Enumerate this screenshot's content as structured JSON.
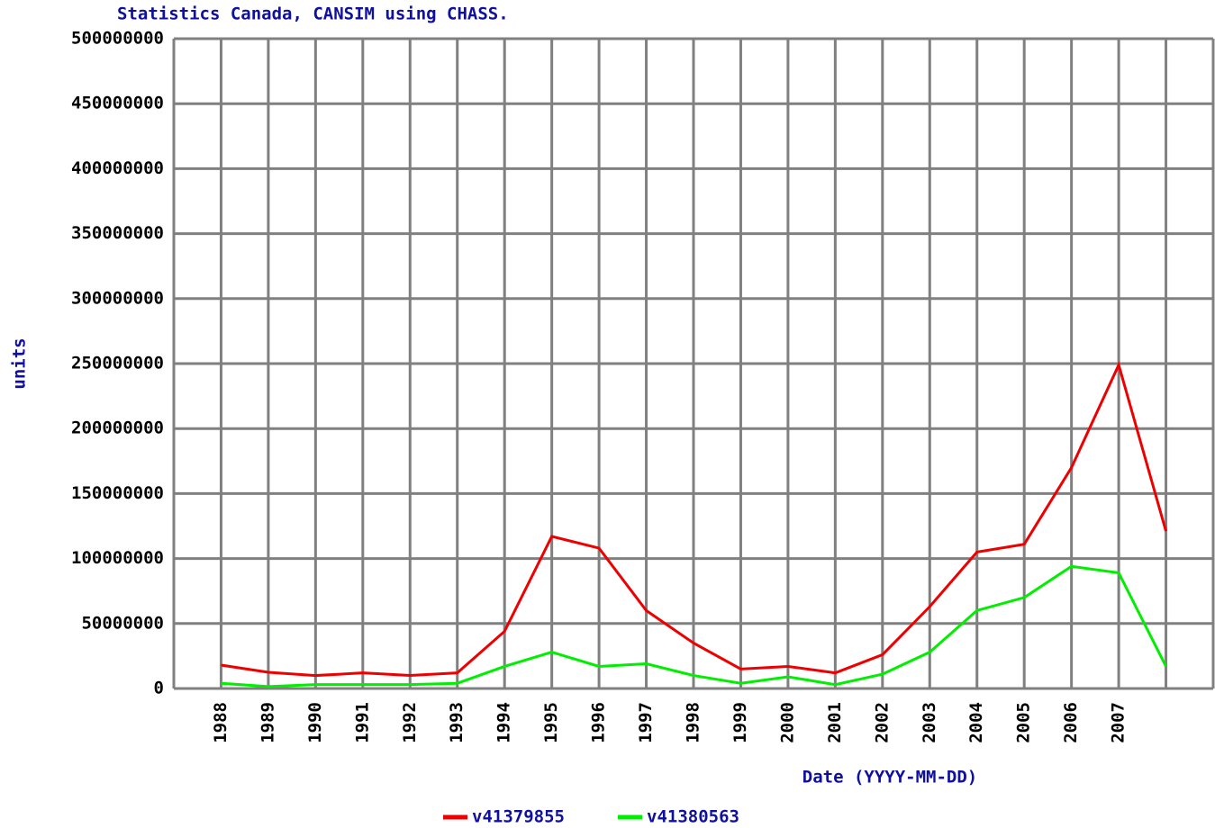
{
  "chart_data": {
    "type": "line",
    "title": "Statistics Canada, CANSIM using CHASS.",
    "ylabel": "units",
    "xlabel": "Date (YYYY-MM-DD)",
    "categories": [
      "1988",
      "1989",
      "1990",
      "1991",
      "1992",
      "1993",
      "1994",
      "1995",
      "1996",
      "1997",
      "1998",
      "1999",
      "2000",
      "2001",
      "2002",
      "2003",
      "2004",
      "2005",
      "2006",
      "2007",
      null
    ],
    "series": [
      {
        "name": "v41379855",
        "color": "#ee0000",
        "values": [
          18000000,
          12500000,
          10000000,
          12000000,
          10000000,
          12000000,
          44000000,
          117000000,
          108000000,
          60000000,
          35000000,
          15000000,
          17000000,
          12000000,
          26000000,
          63000000,
          105000000,
          111000000,
          170000000,
          249000000,
          121000000
        ]
      },
      {
        "name": "v41380563",
        "color": "#00ee00",
        "values": [
          4000000,
          1500000,
          3000000,
          3000000,
          3000000,
          4000000,
          17000000,
          28000000,
          17000000,
          19000000,
          10000000,
          4000000,
          9000000,
          3000000,
          11000000,
          28000000,
          60000000,
          70000000,
          94000000,
          89000000,
          17000000
        ]
      }
    ],
    "ylim": [
      0,
      500000000
    ],
    "yticks": [
      0,
      50000000,
      100000000,
      150000000,
      200000000,
      250000000,
      300000000,
      350000000,
      400000000,
      450000000,
      500000000
    ],
    "grid": true,
    "legend": "bottom"
  }
}
